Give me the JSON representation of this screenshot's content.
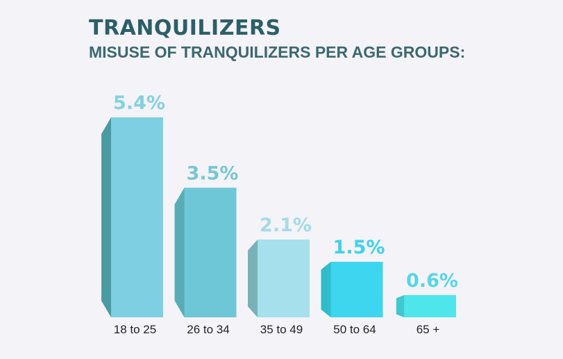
{
  "title": "TRANQUILIZERS",
  "subtitle": "MISUSE OF TRANQUILIZERS PER AGE GROUPS:",
  "chart_data": {
    "type": "bar",
    "categories": [
      "18 to 25",
      "26 to 34",
      "35 to 49",
      "50 to 64",
      "65 +"
    ],
    "values": [
      5.4,
      3.5,
      2.1,
      1.5,
      0.6
    ],
    "value_labels": [
      "5.4%",
      "3.5%",
      "2.1%",
      "1.5%",
      "0.6%"
    ],
    "unit": "%",
    "ylim": [
      0,
      5.4
    ],
    "grid": false,
    "legend": "none",
    "bar_colors": [
      "#7ecfe1",
      "#6ec7d7",
      "#a6e0ec",
      "#3ed6ef",
      "#4ee6ea"
    ],
    "side_colors": [
      "#4a9aa2",
      "#5aacb4",
      "#7ab0b8",
      "#30bccc",
      "#3ec8d0"
    ],
    "label_colors": [
      "#86d0e0",
      "#78c6d6",
      "#a4dbe7",
      "#3ed2ec",
      "#55d6e8"
    ]
  }
}
